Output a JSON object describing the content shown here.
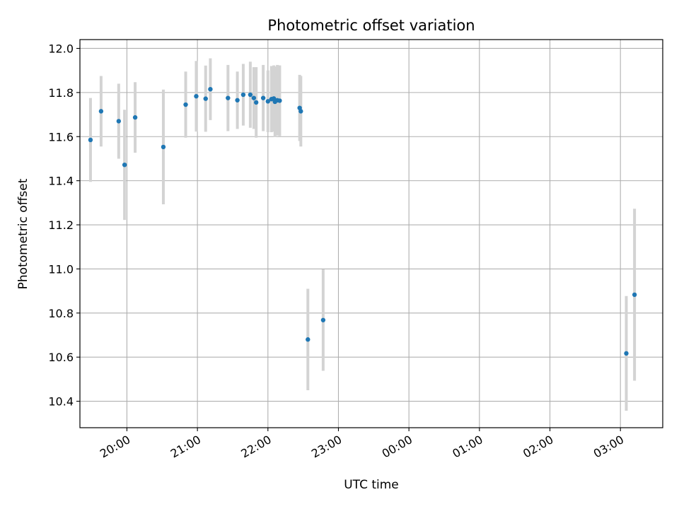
{
  "chart_data": {
    "type": "scatter",
    "title": "Photometric offset variation",
    "xlabel": "UTC time",
    "ylabel": "Photometric offset",
    "xlim": [
      "19:20",
      "03:36"
    ],
    "ylim": [
      10.28,
      12.04
    ],
    "grid": true,
    "x_ticks": [
      "20:00",
      "21:00",
      "22:00",
      "23:00",
      "00:00",
      "01:00",
      "02:00",
      "03:00"
    ],
    "y_ticks": [
      "10.4",
      "10.6",
      "10.8",
      "11.0",
      "11.2",
      "11.4",
      "11.6",
      "11.8",
      "12.0"
    ],
    "colors": {
      "point": "#1f77b4",
      "errorbar": "#d3d3d3",
      "grid": "#b0b0b0"
    },
    "points": [
      {
        "x": "19:29",
        "y": 11.585,
        "yerr": 0.19
      },
      {
        "x": "19:38",
        "y": 11.715,
        "yerr": 0.16
      },
      {
        "x": "19:53",
        "y": 11.67,
        "yerr": 0.17
      },
      {
        "x": "19:58",
        "y": 11.472,
        "yerr": 0.25
      },
      {
        "x": "20:07",
        "y": 11.687,
        "yerr": 0.16
      },
      {
        "x": "20:31",
        "y": 11.553,
        "yerr": 0.26
      },
      {
        "x": "20:50",
        "y": 11.745,
        "yerr": 0.15
      },
      {
        "x": "20:59",
        "y": 11.783,
        "yerr": 0.16
      },
      {
        "x": "21:07",
        "y": 11.772,
        "yerr": 0.15
      },
      {
        "x": "21:11",
        "y": 11.815,
        "yerr": 0.14
      },
      {
        "x": "21:26",
        "y": 11.775,
        "yerr": 0.15
      },
      {
        "x": "21:34",
        "y": 11.765,
        "yerr": 0.13
      },
      {
        "x": "21:39",
        "y": 11.79,
        "yerr": 0.14
      },
      {
        "x": "21:45",
        "y": 11.79,
        "yerr": 0.15
      },
      {
        "x": "21:48",
        "y": 11.775,
        "yerr": 0.14
      },
      {
        "x": "21:50",
        "y": 11.755,
        "yerr": 0.16
      },
      {
        "x": "21:56",
        "y": 11.775,
        "yerr": 0.15
      },
      {
        "x": "22:00",
        "y": 11.76,
        "yerr": 0.14
      },
      {
        "x": "22:03",
        "y": 11.77,
        "yerr": 0.15
      },
      {
        "x": "22:05",
        "y": 11.773,
        "yerr": 0.15
      },
      {
        "x": "22:06",
        "y": 11.758,
        "yerr": 0.16
      },
      {
        "x": "22:08",
        "y": 11.765,
        "yerr": 0.16
      },
      {
        "x": "22:10",
        "y": 11.763,
        "yerr": 0.16
      },
      {
        "x": "22:27",
        "y": 11.73,
        "yerr": 0.15
      },
      {
        "x": "22:28",
        "y": 11.715,
        "yerr": 0.16
      },
      {
        "x": "22:34",
        "y": 10.68,
        "yerr": 0.23
      },
      {
        "x": "22:47",
        "y": 10.768,
        "yerr": 0.23
      },
      {
        "x": "03:05",
        "y": 10.617,
        "yerr": 0.26
      },
      {
        "x": "03:12",
        "y": 10.883,
        "yerr": 0.39
      }
    ]
  }
}
